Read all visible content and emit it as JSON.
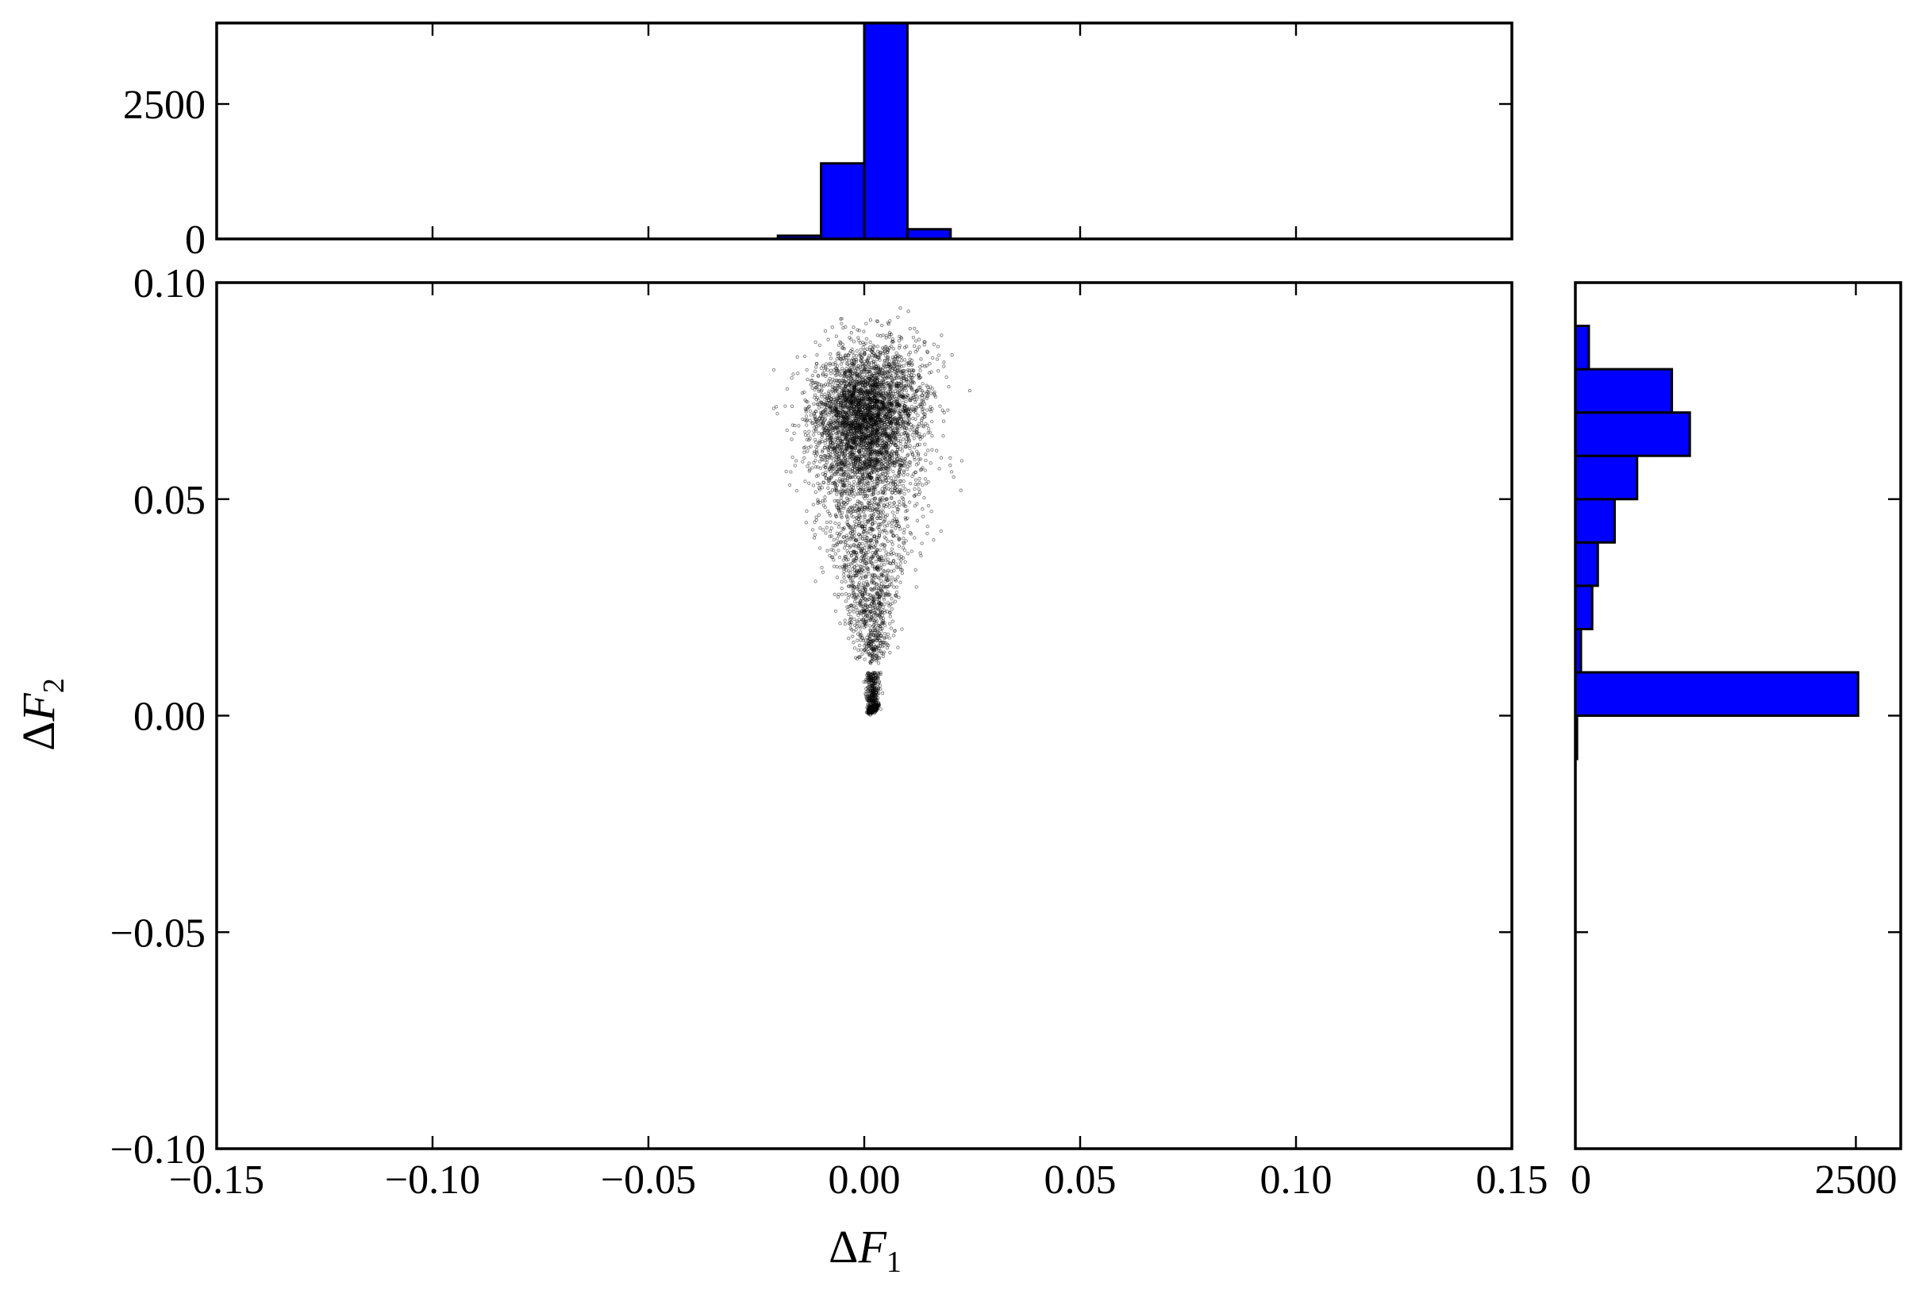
{
  "chart_data": [
    {
      "type": "scatter",
      "panel": "main",
      "xlabel": {
        "symbol": "Δ",
        "var": "F",
        "sub": "1"
      },
      "ylabel": {
        "symbol": "Δ",
        "var": "F",
        "sub": "2"
      },
      "xlim": [
        -0.15,
        0.15
      ],
      "ylim": [
        -0.1,
        0.1
      ],
      "x_ticks": [
        -0.15,
        -0.1,
        -0.05,
        0.0,
        0.05,
        0.1,
        0.15
      ],
      "x_tick_labels": [
        "−0.15",
        "−0.10",
        "−0.05",
        "0.00",
        "0.05",
        "0.10",
        "0.15"
      ],
      "y_ticks": [
        -0.1,
        -0.05,
        0.0,
        0.05,
        0.1
      ],
      "y_tick_labels": [
        "−0.10",
        "−0.05",
        "0.00",
        "0.05",
        "0.10"
      ],
      "marker_color": "#000000",
      "grid": false,
      "point_count": 5500,
      "clusters": [
        {
          "description": "dense head",
          "x_center": 0.0,
          "y_center": 0.068,
          "x_spread": 0.006,
          "y_spread": 0.007,
          "share": 0.5
        },
        {
          "description": "upper fringe",
          "x_center": 0.004,
          "y_center": 0.077,
          "x_spread": 0.007,
          "y_spread": 0.006,
          "share": 0.12
        },
        {
          "description": "tapering tail",
          "x_range": [
            -0.006,
            0.008
          ],
          "y_range": [
            0.012,
            0.06
          ],
          "share": 0.28
        },
        {
          "description": "narrow neck",
          "x_center": 0.002,
          "y_range": [
            0.002,
            0.01
          ],
          "share": 0.05
        },
        {
          "description": "compact core near origin",
          "x_center": 0.001,
          "y_center": 0.001,
          "share": 0.05
        }
      ]
    },
    {
      "type": "bar",
      "panel": "top-histogram",
      "orientation": "vertical",
      "bin_edges": [
        -0.02,
        -0.01,
        0.0,
        0.01,
        0.02
      ],
      "values": [
        60,
        1400,
        4000,
        180
      ],
      "xlim": [
        -0.15,
        0.15
      ],
      "ylim": [
        0,
        4000
      ],
      "y_ticks": [
        0,
        2500
      ],
      "y_tick_labels": [
        "0",
        "2500"
      ],
      "bar_color": "#0000ff"
    },
    {
      "type": "bar",
      "panel": "right-histogram",
      "orientation": "horizontal",
      "bin_edges": [
        -0.01,
        0.0,
        0.01,
        0.02,
        0.03,
        0.04,
        0.05,
        0.06,
        0.07,
        0.08,
        0.09
      ],
      "values": [
        15,
        2520,
        50,
        150,
        200,
        350,
        550,
        1020,
        860,
        120
      ],
      "ylim": [
        -0.1,
        0.1
      ],
      "xlim": [
        0,
        2900
      ],
      "x_ticks": [
        0,
        2500
      ],
      "x_tick_labels": [
        "0",
        "2500"
      ],
      "bar_color": "#0000ff"
    }
  ]
}
